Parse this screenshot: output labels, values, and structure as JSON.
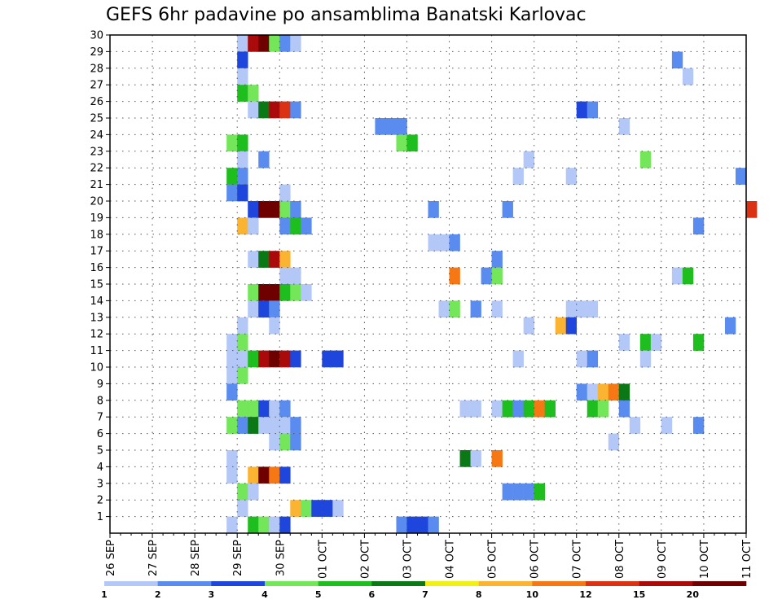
{
  "chart_data": {
    "type": "heatmap",
    "title": "GEFS 6hr padavine po ansamblima Banatski Karlovac",
    "xlabel": "",
    "ylabel": "",
    "x_tick_labels": [
      "26 SEP",
      "27 SEP",
      "28 SEP",
      "29 SEP",
      "30 SEP",
      "01 OCT",
      "02 OCT",
      "03 OCT",
      "04 OCT",
      "05 OCT",
      "06 OCT",
      "07 OCT",
      "08 OCT",
      "09 OCT",
      "10 OCT",
      "11 OCT"
    ],
    "y_tick_labels": [
      "1",
      "2",
      "3",
      "4",
      "5",
      "6",
      "7",
      "8",
      "9",
      "10",
      "11",
      "12",
      "13",
      "14",
      "15",
      "16",
      "17",
      "18",
      "19",
      "20",
      "21",
      "22",
      "23",
      "24",
      "25",
      "26",
      "27",
      "28",
      "29",
      "30"
    ],
    "ylim": [
      0,
      30
    ],
    "grid": true,
    "time_step_hours": 6,
    "colorbar": {
      "labels": [
        "1",
        "2",
        "3",
        "4",
        "5",
        "6",
        "7",
        "8",
        "10",
        "12",
        "15",
        "20"
      ],
      "colors": [
        "#b4c8f8",
        "#5a8cf0",
        "#1e46dc",
        "#73e65a",
        "#1ebe1e",
        "#0a7814",
        "#f0f014",
        "#fab432",
        "#f57814",
        "#dc3214",
        "#aa0a0a",
        "#6e0000"
      ]
    },
    "cells": [
      {
        "m": 30,
        "d": "29 SEP",
        "h": 0,
        "v": 1
      },
      {
        "m": 30,
        "d": "29 SEP",
        "h": 6,
        "v": 15
      },
      {
        "m": 30,
        "d": "29 SEP",
        "h": 12,
        "v": 20
      },
      {
        "m": 30,
        "d": "29 SEP",
        "h": 18,
        "v": 4
      },
      {
        "m": 30,
        "d": "30 SEP",
        "h": 0,
        "v": 2
      },
      {
        "m": 30,
        "d": "30 SEP",
        "h": 6,
        "v": 1
      },
      {
        "m": 29,
        "d": "29 SEP",
        "h": 0,
        "v": 3
      },
      {
        "m": 29,
        "d": "09 OCT",
        "h": 6,
        "v": 2
      },
      {
        "m": 28,
        "d": "29 SEP",
        "h": 0,
        "v": 1
      },
      {
        "m": 28,
        "d": "09 OCT",
        "h": 12,
        "v": 1
      },
      {
        "m": 27,
        "d": "29 SEP",
        "h": 0,
        "v": 5
      },
      {
        "m": 27,
        "d": "29 SEP",
        "h": 6,
        "v": 4
      },
      {
        "m": 26,
        "d": "29 SEP",
        "h": 6,
        "v": 1
      },
      {
        "m": 26,
        "d": "29 SEP",
        "h": 12,
        "v": 6
      },
      {
        "m": 26,
        "d": "29 SEP",
        "h": 18,
        "v": 15
      },
      {
        "m": 26,
        "d": "30 SEP",
        "h": 0,
        "v": 12
      },
      {
        "m": 26,
        "d": "30 SEP",
        "h": 6,
        "v": 2
      },
      {
        "m": 26,
        "d": "07 OCT",
        "h": 0,
        "v": 3
      },
      {
        "m": 26,
        "d": "07 OCT",
        "h": 6,
        "v": 2
      },
      {
        "m": 25,
        "d": "02 OCT",
        "h": 6,
        "v": 2
      },
      {
        "m": 25,
        "d": "02 OCT",
        "h": 12,
        "v": 2
      },
      {
        "m": 25,
        "d": "02 OCT",
        "h": 18,
        "v": 2
      },
      {
        "m": 25,
        "d": "08 OCT",
        "h": 0,
        "v": 1
      },
      {
        "m": 24,
        "d": "28 SEP",
        "h": 18,
        "v": 4
      },
      {
        "m": 24,
        "d": "29 SEP",
        "h": 0,
        "v": 5
      },
      {
        "m": 24,
        "d": "02 OCT",
        "h": 18,
        "v": 4
      },
      {
        "m": 24,
        "d": "03 OCT",
        "h": 0,
        "v": 5
      },
      {
        "m": 23,
        "d": "29 SEP",
        "h": 0,
        "v": 1
      },
      {
        "m": 23,
        "d": "29 SEP",
        "h": 12,
        "v": 2
      },
      {
        "m": 23,
        "d": "05 OCT",
        "h": 18,
        "v": 1
      },
      {
        "m": 23,
        "d": "08 OCT",
        "h": 12,
        "v": 4
      },
      {
        "m": 22,
        "d": "28 SEP",
        "h": 18,
        "v": 5
      },
      {
        "m": 22,
        "d": "29 SEP",
        "h": 0,
        "v": 2
      },
      {
        "m": 22,
        "d": "05 OCT",
        "h": 12,
        "v": 1
      },
      {
        "m": 22,
        "d": "06 OCT",
        "h": 18,
        "v": 1
      },
      {
        "m": 22,
        "d": "10 OCT",
        "h": 18,
        "v": 2
      },
      {
        "m": 21,
        "d": "28 SEP",
        "h": 18,
        "v": 2
      },
      {
        "m": 21,
        "d": "29 SEP",
        "h": 0,
        "v": 3
      },
      {
        "m": 21,
        "d": "30 SEP",
        "h": 0,
        "v": 1
      },
      {
        "m": 20,
        "d": "29 SEP",
        "h": 6,
        "v": 3
      },
      {
        "m": 20,
        "d": "29 SEP",
        "h": 12,
        "v": 20
      },
      {
        "m": 20,
        "d": "29 SEP",
        "h": 18,
        "v": 20
      },
      {
        "m": 20,
        "d": "30 SEP",
        "h": 0,
        "v": 4
      },
      {
        "m": 20,
        "d": "30 SEP",
        "h": 6,
        "v": 2
      },
      {
        "m": 20,
        "d": "03 OCT",
        "h": 12,
        "v": 2
      },
      {
        "m": 20,
        "d": "05 OCT",
        "h": 6,
        "v": 2
      },
      {
        "m": 20,
        "d": "11 OCT",
        "h": 0,
        "v": 12
      },
      {
        "m": 19,
        "d": "29 SEP",
        "h": 0,
        "v": 8
      },
      {
        "m": 19,
        "d": "29 SEP",
        "h": 6,
        "v": 1
      },
      {
        "m": 19,
        "d": "30 SEP",
        "h": 0,
        "v": 2
      },
      {
        "m": 19,
        "d": "30 SEP",
        "h": 6,
        "v": 5
      },
      {
        "m": 19,
        "d": "30 SEP",
        "h": 12,
        "v": 2
      },
      {
        "m": 19,
        "d": "09 OCT",
        "h": 18,
        "v": 2
      },
      {
        "m": 18,
        "d": "03 OCT",
        "h": 12,
        "v": 1
      },
      {
        "m": 18,
        "d": "03 OCT",
        "h": 18,
        "v": 1
      },
      {
        "m": 18,
        "d": "04 OCT",
        "h": 0,
        "v": 2
      },
      {
        "m": 17,
        "d": "29 SEP",
        "h": 6,
        "v": 1
      },
      {
        "m": 17,
        "d": "29 SEP",
        "h": 12,
        "v": 6
      },
      {
        "m": 17,
        "d": "29 SEP",
        "h": 18,
        "v": 15
      },
      {
        "m": 17,
        "d": "30 SEP",
        "h": 0,
        "v": 8
      },
      {
        "m": 17,
        "d": "05 OCT",
        "h": 0,
        "v": 2
      },
      {
        "m": 16,
        "d": "30 SEP",
        "h": 0,
        "v": 1
      },
      {
        "m": 16,
        "d": "30 SEP",
        "h": 6,
        "v": 1
      },
      {
        "m": 16,
        "d": "04 OCT",
        "h": 0,
        "v": 10
      },
      {
        "m": 16,
        "d": "04 OCT",
        "h": 18,
        "v": 2
      },
      {
        "m": 16,
        "d": "05 OCT",
        "h": 0,
        "v": 4
      },
      {
        "m": 16,
        "d": "09 OCT",
        "h": 6,
        "v": 1
      },
      {
        "m": 16,
        "d": "09 OCT",
        "h": 12,
        "v": 5
      },
      {
        "m": 15,
        "d": "29 SEP",
        "h": 6,
        "v": 4
      },
      {
        "m": 15,
        "d": "29 SEP",
        "h": 12,
        "v": 20
      },
      {
        "m": 15,
        "d": "29 SEP",
        "h": 18,
        "v": 20
      },
      {
        "m": 15,
        "d": "30 SEP",
        "h": 0,
        "v": 5
      },
      {
        "m": 15,
        "d": "30 SEP",
        "h": 6,
        "v": 4
      },
      {
        "m": 15,
        "d": "30 SEP",
        "h": 12,
        "v": 1
      },
      {
        "m": 14,
        "d": "29 SEP",
        "h": 6,
        "v": 1
      },
      {
        "m": 14,
        "d": "29 SEP",
        "h": 12,
        "v": 3
      },
      {
        "m": 14,
        "d": "29 SEP",
        "h": 18,
        "v": 2
      },
      {
        "m": 14,
        "d": "03 OCT",
        "h": 18,
        "v": 1
      },
      {
        "m": 14,
        "d": "04 OCT",
        "h": 0,
        "v": 4
      },
      {
        "m": 14,
        "d": "04 OCT",
        "h": 12,
        "v": 2
      },
      {
        "m": 14,
        "d": "05 OCT",
        "h": 0,
        "v": 1
      },
      {
        "m": 14,
        "d": "06 OCT",
        "h": 18,
        "v": 1
      },
      {
        "m": 14,
        "d": "07 OCT",
        "h": 0,
        "v": 1
      },
      {
        "m": 14,
        "d": "07 OCT",
        "h": 6,
        "v": 1
      },
      {
        "m": 13,
        "d": "29 SEP",
        "h": 0,
        "v": 1
      },
      {
        "m": 13,
        "d": "29 SEP",
        "h": 18,
        "v": 1
      },
      {
        "m": 13,
        "d": "05 OCT",
        "h": 18,
        "v": 1
      },
      {
        "m": 13,
        "d": "06 OCT",
        "h": 12,
        "v": 8
      },
      {
        "m": 13,
        "d": "06 OCT",
        "h": 18,
        "v": 3
      },
      {
        "m": 13,
        "d": "10 OCT",
        "h": 12,
        "v": 2
      },
      {
        "m": 12,
        "d": "28 SEP",
        "h": 18,
        "v": 1
      },
      {
        "m": 12,
        "d": "29 SEP",
        "h": 0,
        "v": 4
      },
      {
        "m": 12,
        "d": "08 OCT",
        "h": 0,
        "v": 1
      },
      {
        "m": 12,
        "d": "08 OCT",
        "h": 12,
        "v": 5
      },
      {
        "m": 12,
        "d": "08 OCT",
        "h": 18,
        "v": 1
      },
      {
        "m": 12,
        "d": "09 OCT",
        "h": 18,
        "v": 5
      },
      {
        "m": 11,
        "d": "28 SEP",
        "h": 18,
        "v": 1
      },
      {
        "m": 11,
        "d": "29 SEP",
        "h": 0,
        "v": 1
      },
      {
        "m": 11,
        "d": "29 SEP",
        "h": 6,
        "v": 5
      },
      {
        "m": 11,
        "d": "29 SEP",
        "h": 12,
        "v": 15
      },
      {
        "m": 11,
        "d": "29 SEP",
        "h": 18,
        "v": 20
      },
      {
        "m": 11,
        "d": "30 SEP",
        "h": 0,
        "v": 15
      },
      {
        "m": 11,
        "d": "30 SEP",
        "h": 6,
        "v": 3
      },
      {
        "m": 11,
        "d": "01 OCT",
        "h": 0,
        "v": 3
      },
      {
        "m": 11,
        "d": "01 OCT",
        "h": 6,
        "v": 3
      },
      {
        "m": 11,
        "d": "05 OCT",
        "h": 12,
        "v": 1
      },
      {
        "m": 11,
        "d": "07 OCT",
        "h": 0,
        "v": 1
      },
      {
        "m": 11,
        "d": "07 OCT",
        "h": 6,
        "v": 2
      },
      {
        "m": 11,
        "d": "08 OCT",
        "h": 12,
        "v": 1
      },
      {
        "m": 10,
        "d": "28 SEP",
        "h": 18,
        "v": 1
      },
      {
        "m": 10,
        "d": "29 SEP",
        "h": 0,
        "v": 4
      },
      {
        "m": 9,
        "d": "28 SEP",
        "h": 18,
        "v": 2
      },
      {
        "m": 9,
        "d": "07 OCT",
        "h": 0,
        "v": 2
      },
      {
        "m": 9,
        "d": "07 OCT",
        "h": 6,
        "v": 1
      },
      {
        "m": 9,
        "d": "07 OCT",
        "h": 12,
        "v": 8
      },
      {
        "m": 9,
        "d": "07 OCT",
        "h": 18,
        "v": 10
      },
      {
        "m": 9,
        "d": "08 OCT",
        "h": 0,
        "v": 6
      },
      {
        "m": 8,
        "d": "29 SEP",
        "h": 0,
        "v": 4
      },
      {
        "m": 8,
        "d": "29 SEP",
        "h": 6,
        "v": 4
      },
      {
        "m": 8,
        "d": "29 SEP",
        "h": 12,
        "v": 3
      },
      {
        "m": 8,
        "d": "29 SEP",
        "h": 18,
        "v": 1
      },
      {
        "m": 8,
        "d": "30 SEP",
        "h": 0,
        "v": 2
      },
      {
        "m": 8,
        "d": "04 OCT",
        "h": 6,
        "v": 1
      },
      {
        "m": 8,
        "d": "04 OCT",
        "h": 12,
        "v": 1
      },
      {
        "m": 8,
        "d": "05 OCT",
        "h": 0,
        "v": 1
      },
      {
        "m": 8,
        "d": "05 OCT",
        "h": 6,
        "v": 5
      },
      {
        "m": 8,
        "d": "05 OCT",
        "h": 12,
        "v": 2
      },
      {
        "m": 8,
        "d": "05 OCT",
        "h": 18,
        "v": 5
      },
      {
        "m": 8,
        "d": "06 OCT",
        "h": 0,
        "v": 10
      },
      {
        "m": 8,
        "d": "06 OCT",
        "h": 6,
        "v": 5
      },
      {
        "m": 8,
        "d": "07 OCT",
        "h": 6,
        "v": 5
      },
      {
        "m": 8,
        "d": "07 OCT",
        "h": 12,
        "v": 4
      },
      {
        "m": 8,
        "d": "08 OCT",
        "h": 0,
        "v": 2
      },
      {
        "m": 7,
        "d": "28 SEP",
        "h": 18,
        "v": 4
      },
      {
        "m": 7,
        "d": "29 SEP",
        "h": 0,
        "v": 2
      },
      {
        "m": 7,
        "d": "29 SEP",
        "h": 6,
        "v": 6
      },
      {
        "m": 7,
        "d": "29 SEP",
        "h": 12,
        "v": 1
      },
      {
        "m": 7,
        "d": "29 SEP",
        "h": 18,
        "v": 1
      },
      {
        "m": 7,
        "d": "30 SEP",
        "h": 0,
        "v": 1
      },
      {
        "m": 7,
        "d": "30 SEP",
        "h": 6,
        "v": 2
      },
      {
        "m": 7,
        "d": "08 OCT",
        "h": 6,
        "v": 1
      },
      {
        "m": 7,
        "d": "09 OCT",
        "h": 0,
        "v": 1
      },
      {
        "m": 7,
        "d": "09 OCT",
        "h": 18,
        "v": 2
      },
      {
        "m": 6,
        "d": "29 SEP",
        "h": 18,
        "v": 1
      },
      {
        "m": 6,
        "d": "30 SEP",
        "h": 0,
        "v": 4
      },
      {
        "m": 6,
        "d": "30 SEP",
        "h": 6,
        "v": 2
      },
      {
        "m": 6,
        "d": "07 OCT",
        "h": 18,
        "v": 1
      },
      {
        "m": 5,
        "d": "28 SEP",
        "h": 18,
        "v": 1
      },
      {
        "m": 5,
        "d": "04 OCT",
        "h": 6,
        "v": 6
      },
      {
        "m": 5,
        "d": "04 OCT",
        "h": 12,
        "v": 1
      },
      {
        "m": 5,
        "d": "05 OCT",
        "h": 0,
        "v": 10
      },
      {
        "m": 4,
        "d": "28 SEP",
        "h": 18,
        "v": 1
      },
      {
        "m": 4,
        "d": "29 SEP",
        "h": 6,
        "v": 8
      },
      {
        "m": 4,
        "d": "29 SEP",
        "h": 12,
        "v": 20
      },
      {
        "m": 4,
        "d": "29 SEP",
        "h": 18,
        "v": 10
      },
      {
        "m": 4,
        "d": "30 SEP",
        "h": 0,
        "v": 3
      },
      {
        "m": 3,
        "d": "29 SEP",
        "h": 0,
        "v": 4
      },
      {
        "m": 3,
        "d": "29 SEP",
        "h": 6,
        "v": 1
      },
      {
        "m": 3,
        "d": "05 OCT",
        "h": 6,
        "v": 2
      },
      {
        "m": 3,
        "d": "05 OCT",
        "h": 12,
        "v": 2
      },
      {
        "m": 3,
        "d": "05 OCT",
        "h": 18,
        "v": 2
      },
      {
        "m": 3,
        "d": "06 OCT",
        "h": 0,
        "v": 5
      },
      {
        "m": 2,
        "d": "29 SEP",
        "h": 0,
        "v": 1
      },
      {
        "m": 2,
        "d": "30 SEP",
        "h": 6,
        "v": 8
      },
      {
        "m": 2,
        "d": "30 SEP",
        "h": 12,
        "v": 4
      },
      {
        "m": 2,
        "d": "30 SEP",
        "h": 18,
        "v": 3
      },
      {
        "m": 2,
        "d": "01 OCT",
        "h": 0,
        "v": 3
      },
      {
        "m": 2,
        "d": "01 OCT",
        "h": 6,
        "v": 1
      },
      {
        "m": 1,
        "d": "28 SEP",
        "h": 18,
        "v": 1
      },
      {
        "m": 1,
        "d": "29 SEP",
        "h": 6,
        "v": 5
      },
      {
        "m": 1,
        "d": "29 SEP",
        "h": 12,
        "v": 4
      },
      {
        "m": 1,
        "d": "29 SEP",
        "h": 18,
        "v": 1
      },
      {
        "m": 1,
        "d": "30 SEP",
        "h": 0,
        "v": 3
      },
      {
        "m": 1,
        "d": "02 OCT",
        "h": 18,
        "v": 2
      },
      {
        "m": 1,
        "d": "03 OCT",
        "h": 0,
        "v": 3
      },
      {
        "m": 1,
        "d": "03 OCT",
        "h": 6,
        "v": 3
      },
      {
        "m": 1,
        "d": "03 OCT",
        "h": 12,
        "v": 2
      }
    ]
  }
}
